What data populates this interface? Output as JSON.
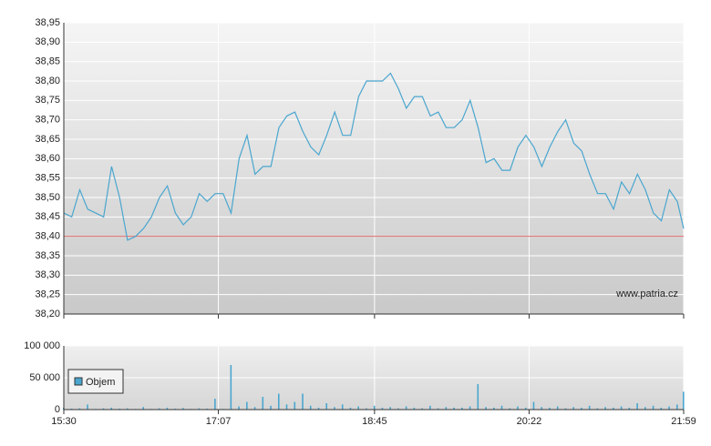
{
  "chart_data": [
    {
      "type": "line",
      "annotation": "www.patria.cz",
      "x": [
        "15:30",
        "15:35",
        "15:40",
        "15:45",
        "15:50",
        "15:55",
        "16:00",
        "16:05",
        "16:10",
        "16:15",
        "16:20",
        "16:25",
        "16:30",
        "16:35",
        "16:40",
        "16:45",
        "16:50",
        "16:55",
        "17:00",
        "17:05",
        "17:10",
        "17:15",
        "17:20",
        "17:25",
        "17:30",
        "17:35",
        "17:40",
        "17:45",
        "17:50",
        "17:55",
        "18:00",
        "18:05",
        "18:10",
        "18:15",
        "18:20",
        "18:25",
        "18:30",
        "18:35",
        "18:40",
        "18:45",
        "18:50",
        "18:55",
        "19:00",
        "19:05",
        "19:10",
        "19:15",
        "19:20",
        "19:25",
        "19:30",
        "19:35",
        "19:40",
        "19:45",
        "19:50",
        "19:55",
        "20:00",
        "20:05",
        "20:10",
        "20:15",
        "20:20",
        "20:25",
        "20:30",
        "20:35",
        "20:40",
        "20:45",
        "20:50",
        "20:55",
        "21:00",
        "21:05",
        "21:10",
        "21:15",
        "21:20",
        "21:25",
        "21:30",
        "21:35",
        "21:40",
        "21:45",
        "21:50",
        "21:55",
        "21:59"
      ],
      "values": [
        38.46,
        38.45,
        38.52,
        38.47,
        38.46,
        38.45,
        38.58,
        38.5,
        38.39,
        38.4,
        38.42,
        38.45,
        38.5,
        38.53,
        38.46,
        38.43,
        38.45,
        38.51,
        38.49,
        38.51,
        38.51,
        38.46,
        38.6,
        38.66,
        38.56,
        38.58,
        38.58,
        38.68,
        38.71,
        38.72,
        38.67,
        38.63,
        38.61,
        38.66,
        38.72,
        38.66,
        38.66,
        38.76,
        38.8,
        38.8,
        38.8,
        38.82,
        38.78,
        38.73,
        38.76,
        38.76,
        38.71,
        38.72,
        38.68,
        38.68,
        38.7,
        38.75,
        38.68,
        38.59,
        38.6,
        38.57,
        38.57,
        38.63,
        38.66,
        38.63,
        38.58,
        38.63,
        38.67,
        38.7,
        38.64,
        38.62,
        38.56,
        38.51,
        38.51,
        38.47,
        38.54,
        38.51,
        38.56,
        38.52,
        38.46,
        38.44,
        38.52,
        38.49,
        38.42
      ],
      "color": "#4aa6cf",
      "reference_line": 38.4,
      "reference_color": "#e06a6a",
      "xlim": [
        "15:30",
        "21:59"
      ],
      "ylim": [
        38.2,
        38.95
      ],
      "yticks": [
        {
          "value": 38.2,
          "label": "38,20"
        },
        {
          "value": 38.25,
          "label": "38,25"
        },
        {
          "value": 38.3,
          "label": "38,30"
        },
        {
          "value": 38.35,
          "label": "38,35"
        },
        {
          "value": 38.4,
          "label": "38,40"
        },
        {
          "value": 38.45,
          "label": "38,45"
        },
        {
          "value": 38.5,
          "label": "38,50"
        },
        {
          "value": 38.55,
          "label": "38,55"
        },
        {
          "value": 38.6,
          "label": "38,60"
        },
        {
          "value": 38.65,
          "label": "38,65"
        },
        {
          "value": 38.7,
          "label": "38,70"
        },
        {
          "value": 38.75,
          "label": "38,75"
        },
        {
          "value": 38.8,
          "label": "38,80"
        },
        {
          "value": 38.85,
          "label": "38,85"
        },
        {
          "value": 38.9,
          "label": "38,90"
        },
        {
          "value": 38.95,
          "label": "38,95"
        }
      ],
      "grid": true
    },
    {
      "type": "bar",
      "x": [
        "15:30",
        "15:35",
        "15:40",
        "15:45",
        "15:50",
        "15:55",
        "16:00",
        "16:05",
        "16:10",
        "16:15",
        "16:20",
        "16:25",
        "16:30",
        "16:35",
        "16:40",
        "16:45",
        "16:50",
        "16:55",
        "17:00",
        "17:05",
        "17:10",
        "17:15",
        "17:20",
        "17:25",
        "17:30",
        "17:35",
        "17:40",
        "17:45",
        "17:50",
        "17:55",
        "18:00",
        "18:05",
        "18:10",
        "18:15",
        "18:20",
        "18:25",
        "18:30",
        "18:35",
        "18:40",
        "18:45",
        "18:50",
        "18:55",
        "19:00",
        "19:05",
        "19:10",
        "19:15",
        "19:20",
        "19:25",
        "19:30",
        "19:35",
        "19:40",
        "19:45",
        "19:50",
        "19:55",
        "20:00",
        "20:05",
        "20:10",
        "20:15",
        "20:20",
        "20:25",
        "20:30",
        "20:35",
        "20:40",
        "20:45",
        "20:50",
        "20:55",
        "21:00",
        "21:05",
        "21:10",
        "21:15",
        "21:20",
        "21:25",
        "21:30",
        "21:35",
        "21:40",
        "21:45",
        "21:50",
        "21:55",
        "21:59"
      ],
      "series": [
        {
          "name": "Objem",
          "color": "#4aa6cf",
          "values": [
            3000,
            1500,
            2000,
            8000,
            1000,
            2000,
            3000,
            1500,
            2000,
            1000,
            4000,
            1000,
            2000,
            3000,
            1500,
            2500,
            1000,
            2000,
            1500,
            17000,
            1000,
            70000,
            5000,
            12000,
            4000,
            20000,
            6000,
            25000,
            8000,
            12000,
            25000,
            6000,
            3000,
            10000,
            4000,
            8000,
            3000,
            5000,
            2000,
            6000,
            3000,
            4000,
            2000,
            5000,
            3000,
            2000,
            6000,
            2000,
            4000,
            3000,
            3000,
            5000,
            40000,
            4000,
            3000,
            6000,
            2000,
            5000,
            3000,
            12000,
            4000,
            3000,
            5000,
            2000,
            4000,
            3000,
            6000,
            2000,
            4000,
            3000,
            5000,
            3000,
            10000,
            4000,
            6000,
            3000,
            5000,
            8000,
            28000
          ]
        }
      ],
      "xlim": [
        "15:30",
        "21:59"
      ],
      "xticks": [
        "15:30",
        "17:07",
        "18:45",
        "20:22",
        "21:59"
      ],
      "ylim": [
        0,
        100000
      ],
      "yticks": [
        0,
        {
          "value": 50000,
          "label": "50 000"
        },
        {
          "value": 100000,
          "label": "100 000"
        }
      ],
      "legend": "upper left",
      "grid": true
    }
  ]
}
